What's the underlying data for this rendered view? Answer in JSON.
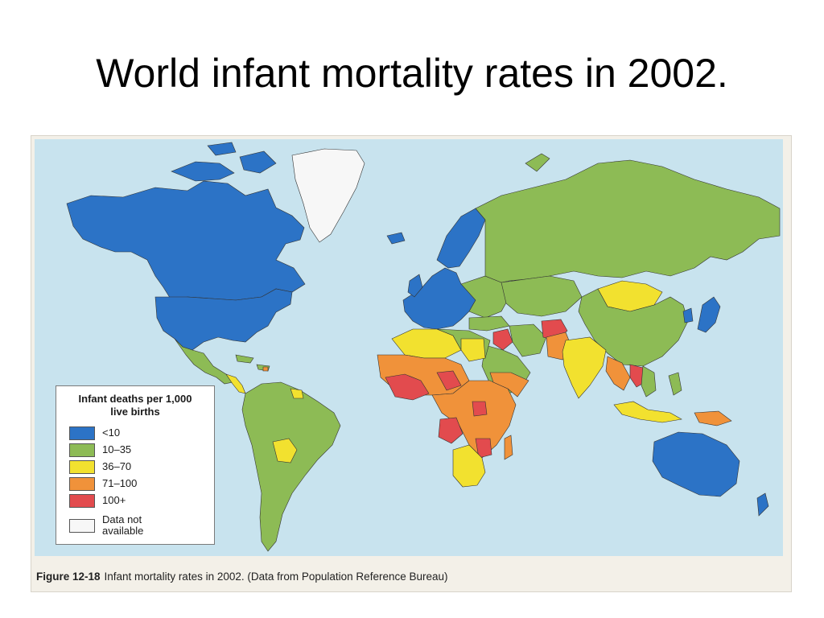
{
  "slide": {
    "title": "World infant mortality rates in 2002."
  },
  "legend": {
    "title_line1": "Infant deaths per 1,000",
    "title_line2": "live births",
    "items": [
      {
        "label": "<10",
        "color": "#2c73c6"
      },
      {
        "label": "10–35",
        "color": "#8dbb55"
      },
      {
        "label": "36–70",
        "color": "#f2e12f"
      },
      {
        "label": "71–100",
        "color": "#f0923a"
      },
      {
        "label": "100+",
        "color": "#e24b4e"
      },
      {
        "label_line1": "Data not",
        "label_line2": "available",
        "color": "#f7f7f7"
      }
    ]
  },
  "caption": {
    "figure": "Figure 12-18",
    "text": "Infant mortality rates in 2002. (Data from Population Reference Bureau)"
  },
  "colors": {
    "ocean": "#c8e3ee",
    "under_10": "#2c73c6",
    "r10_35": "#8dbb55",
    "r36_70": "#f2e12f",
    "r71_100": "#f0923a",
    "over_100": "#e24b4e",
    "no_data": "#f7f7f7"
  }
}
